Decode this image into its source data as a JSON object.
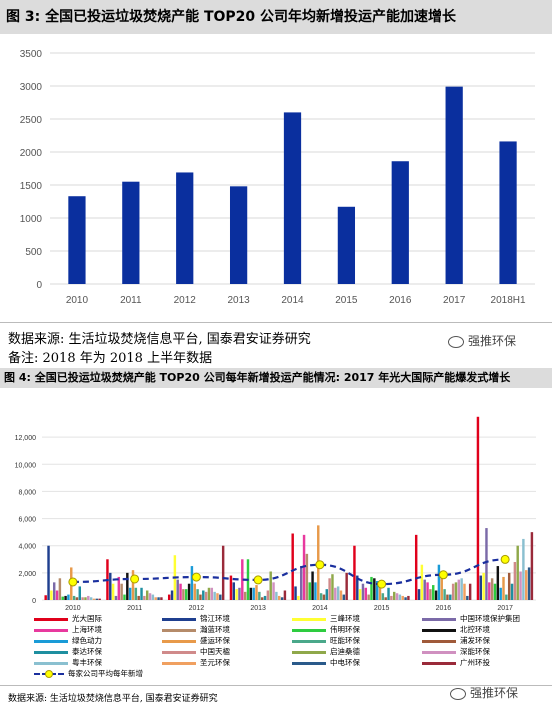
{
  "figure3": {
    "title": "图 3:  全国已投运垃圾焚烧产能 TOP20 公司年均新增投运产能加速增长",
    "source": "数据来源:  生活垃圾焚烧信息平台,  国泰君安证券研究",
    "note": "备注:  2018 年为 2018 上半年数据",
    "watermark": "强推环保"
  },
  "figure4": {
    "title": "图 4:  全国已投运垃圾焚烧产能 TOP20 公司每年新增投运产能情况:  2017 年光大国际产能爆发式增长",
    "source": "数据来源:  生活垃圾焚烧信息平台,  国泰君安证券研究",
    "watermark": "强推环保"
  },
  "chart_data": [
    {
      "type": "bar",
      "categories": [
        "2010",
        "2011",
        "2012",
        "2013",
        "2014",
        "2015",
        "2016",
        "2017",
        "2018H1"
      ],
      "values": [
        1330,
        1550,
        1690,
        1480,
        2600,
        1170,
        1860,
        2990,
        2160
      ],
      "ylim": [
        0,
        3500
      ],
      "yticks": [
        0,
        500,
        1000,
        1500,
        2000,
        2500,
        3000,
        3500
      ],
      "color": "#0a2f9e",
      "grid": true
    },
    {
      "type": "bar",
      "categories": [
        "2010",
        "2011",
        "2012",
        "2013",
        "2014",
        "2015",
        "2016",
        "2017"
      ],
      "ylim": [
        0,
        14000
      ],
      "yticks": [
        0,
        2000,
        4000,
        6000,
        8000,
        10000,
        12000
      ],
      "ytick_labels": [
        "0",
        "2,000",
        "4,000",
        "6,000",
        "8,000",
        "10,000",
        "12,000"
      ],
      "grid": true,
      "series": [
        {
          "name": "光大国际",
          "color": "#e0001b",
          "values": [
            350,
            3000,
            400,
            1800,
            4900,
            4000,
            4800,
            13500
          ]
        },
        {
          "name": "锦江环境",
          "color": "#1f3f8f",
          "values": [
            4000,
            2000,
            700,
            1300,
            1000,
            1800,
            800,
            1800
          ]
        },
        {
          "name": "三峰环境",
          "color": "#ffff33",
          "values": [
            700,
            1200,
            3300,
            800,
            300,
            800,
            2600,
            2000
          ]
        },
        {
          "name": "中国环境保护集团",
          "color": "#7b6aa8",
          "values": [
            1300,
            300,
            1500,
            900,
            2500,
            1200,
            1500,
            5300
          ]
        },
        {
          "name": "上海环境",
          "color": "#e8399e",
          "values": [
            700,
            1700,
            1200,
            3000,
            4800,
            900,
            1300,
            1300
          ]
        },
        {
          "name": "瀚蓝环境",
          "color": "#b58b6a",
          "values": [
            1600,
            1200,
            800,
            600,
            3400,
            400,
            800,
            1600
          ]
        },
        {
          "name": "伟明环保",
          "color": "#2ecc40",
          "values": [
            250,
            400,
            800,
            3000,
            1300,
            1700,
            1100,
            1200
          ]
        },
        {
          "name": "北控环境",
          "color": "#111111",
          "values": [
            300,
            2000,
            1200,
            900,
            2100,
            1600,
            700,
            2500
          ]
        },
        {
          "name": "绿色动力",
          "color": "#1a9bd7",
          "values": [
            400,
            900,
            2500,
            900,
            1300,
            1400,
            2600,
            900
          ]
        },
        {
          "name": "盛运环保",
          "color": "#e89a4a",
          "values": [
            2400,
            2200,
            1200,
            1100,
            5500,
            1400,
            1800,
            1700
          ]
        },
        {
          "name": "旺能环保",
          "color": "#4aa88a",
          "values": [
            300,
            900,
            800,
            600,
            500,
            500,
            800,
            400
          ]
        },
        {
          "name": "浦发环保",
          "color": "#a05a3a",
          "values": [
            200,
            300,
            400,
            200,
            400,
            200,
            400,
            2000
          ]
        },
        {
          "name": "泰达环保",
          "color": "#1e8fa0",
          "values": [
            1000,
            900,
            700,
            300,
            800,
            900,
            400,
            1200
          ]
        },
        {
          "name": "中国天楹",
          "color": "#d08a8a",
          "values": [
            200,
            300,
            600,
            700,
            1600,
            300,
            1200,
            2800
          ]
        },
        {
          "name": "启迪桑德",
          "color": "#8fa84a",
          "values": [
            200,
            700,
            900,
            2100,
            1900,
            600,
            1300,
            4000
          ]
        },
        {
          "name": "深能环保",
          "color": "#d090c0",
          "values": [
            300,
            500,
            900,
            1300,
            900,
            500,
            1500,
            2100
          ]
        },
        {
          "name": "粤丰环保",
          "color": "#8ac0d0",
          "values": [
            200,
            400,
            600,
            600,
            1000,
            400,
            1600,
            4500
          ]
        },
        {
          "name": "圣元环保",
          "color": "#f0a060",
          "values": [
            100,
            200,
            500,
            300,
            700,
            300,
            1200,
            2200
          ]
        },
        {
          "name": "中电环保",
          "color": "#2a5a8a",
          "values": [
            100,
            200,
            400,
            200,
            400,
            200,
            300,
            2400
          ]
        },
        {
          "name": "广州环投",
          "color": "#9a2a3a",
          "values": [
            100,
            200,
            4000,
            700,
            2000,
            300,
            1200,
            5000
          ]
        }
      ],
      "line": {
        "name": "每家公司平均每年新增",
        "color": "#1a2f9e",
        "marker_color": "#ffff00",
        "values": [
          1330,
          1550,
          1690,
          1480,
          2600,
          1170,
          1860,
          2990
        ]
      }
    }
  ]
}
